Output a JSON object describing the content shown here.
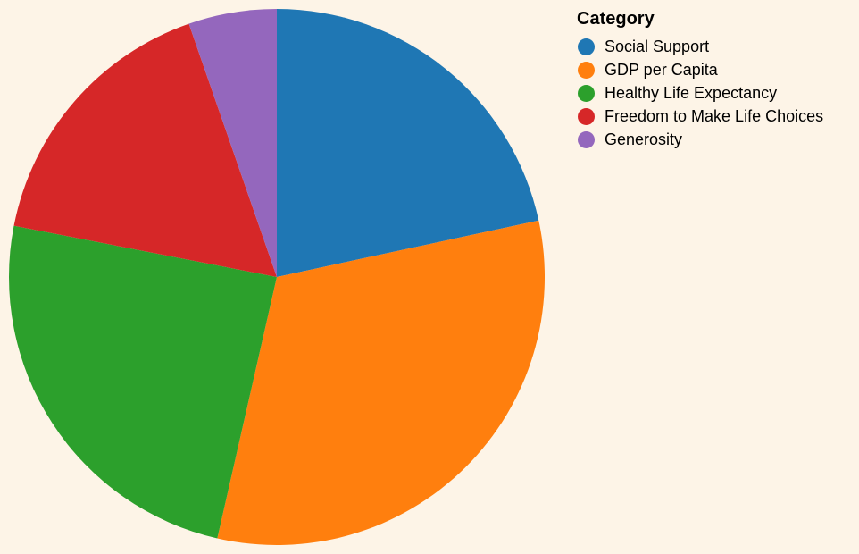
{
  "chart_data": {
    "type": "pie",
    "legend": {
      "title": "Category",
      "placement": "top-right"
    },
    "slices": [
      {
        "label": "Social Support",
        "value": 20.3,
        "color": "#1f77b4"
      },
      {
        "label": "GDP per Capita",
        "value": 30.0,
        "color": "#ff7f0e"
      },
      {
        "label": "Healthy Life Expectancy",
        "value": 23.0,
        "color": "#2ca02c"
      },
      {
        "label": "Freedom to Make Life Choices",
        "value": 15.6,
        "color": "#d62728"
      },
      {
        "label": "Generosity",
        "value": 5.0,
        "color": "#9467bd"
      }
    ],
    "start_angle_deg": 0,
    "direction": "clockwise"
  },
  "colors": {
    "background": "#fdf4e7"
  }
}
